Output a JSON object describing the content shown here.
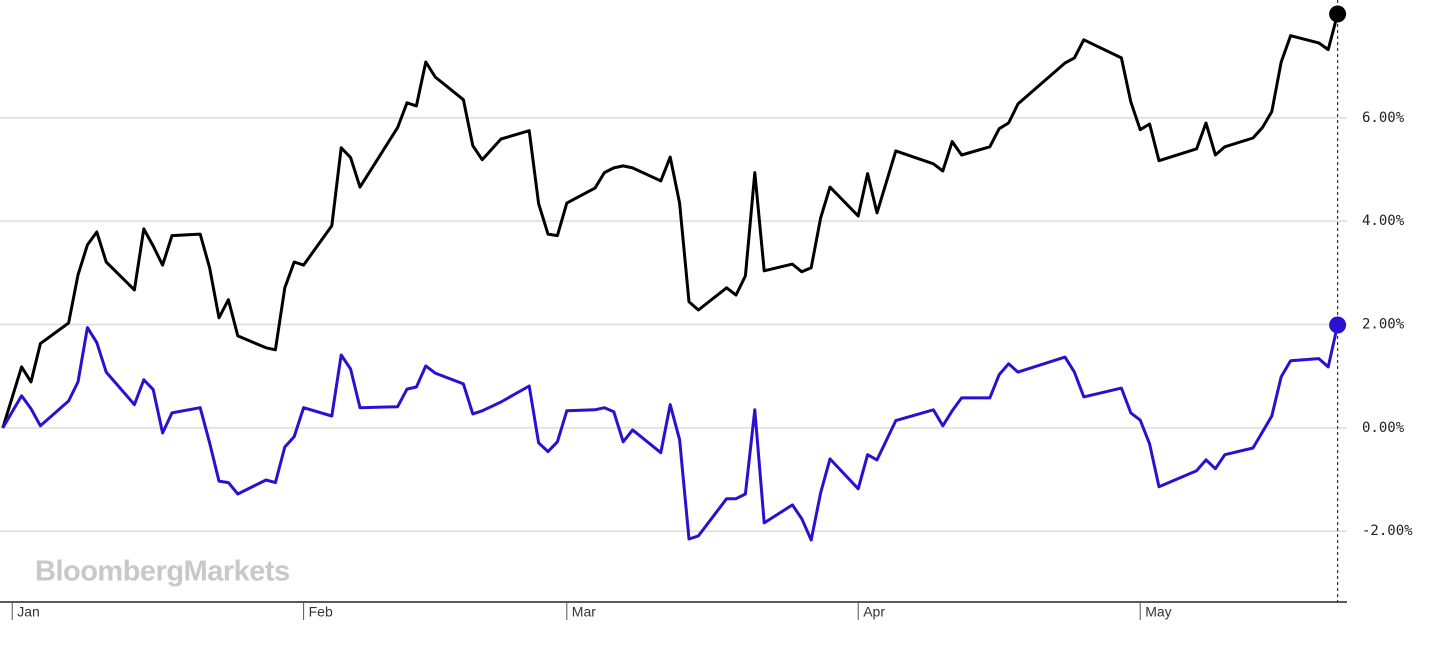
{
  "chart_data": {
    "type": "line",
    "watermark": "BloombergMarkets",
    "x": [
      -1,
      1,
      2,
      3,
      6,
      7,
      8,
      9,
      10,
      13,
      14,
      15,
      16,
      17,
      20,
      21,
      22,
      23,
      24,
      27,
      28,
      29,
      30,
      31,
      34,
      35,
      36,
      37,
      41,
      42,
      43,
      44,
      45,
      48,
      49,
      50,
      52,
      55,
      56,
      57,
      58,
      59,
      62,
      63,
      64,
      65,
      66,
      69,
      70,
      71,
      72,
      73,
      76,
      77,
      78,
      79,
      80,
      83,
      84,
      85,
      86,
      87,
      90,
      91,
      92,
      94,
      98,
      99,
      100,
      101,
      104,
      105,
      106,
      107,
      112,
      113,
      114,
      118,
      119,
      120,
      121,
      122,
      126,
      127,
      128,
      129,
      132,
      133,
      134,
      135,
      136,
      139,
      140,
      141
    ],
    "series": [
      {
        "color": "#000000",
        "values": [
          0,
          1.18,
          0.89,
          1.63,
          2.03,
          2.96,
          3.54,
          3.79,
          3.21,
          2.67,
          3.85,
          3.52,
          3.15,
          3.72,
          3.75,
          3.1,
          2.13,
          2.48,
          1.78,
          1.55,
          1.51,
          2.71,
          3.21,
          3.15,
          3.91,
          5.42,
          5.23,
          4.66,
          5.81,
          6.29,
          6.23,
          7.08,
          6.79,
          6.35,
          5.46,
          5.19,
          5.59,
          5.75,
          4.34,
          3.75,
          3.72,
          4.35,
          4.64,
          4.94,
          5.03,
          5.07,
          5.03,
          4.78,
          5.24,
          4.35,
          2.44,
          2.28,
          2.71,
          2.57,
          2.94,
          4.94,
          3.04,
          3.17,
          3.02,
          3.1,
          4.06,
          4.66,
          4.1,
          4.92,
          4.16,
          5.36,
          5.11,
          4.97,
          5.54,
          5.28,
          5.44,
          5.79,
          5.9,
          6.27,
          7.06,
          7.16,
          7.51,
          7.16,
          6.31,
          5.77,
          5.88,
          5.17,
          5.4,
          5.9,
          5.28,
          5.44,
          5.61,
          5.81,
          6.12,
          7.08,
          7.59,
          7.45,
          7.32,
          8.01
        ]
      },
      {
        "color": "#2a10d0",
        "values": [
          0,
          0.62,
          0.37,
          0.04,
          0.52,
          0.89,
          1.94,
          1.65,
          1.08,
          0.45,
          0.93,
          0.74,
          -0.1,
          0.29,
          0.39,
          -0.29,
          -1.03,
          -1.06,
          -1.28,
          -1.01,
          -1.06,
          -0.37,
          -0.17,
          0.39,
          0.23,
          1.41,
          1.14,
          0.39,
          0.41,
          0.75,
          0.79,
          1.2,
          1.06,
          0.85,
          0.27,
          0.33,
          0.5,
          0.81,
          -0.29,
          -0.46,
          -0.27,
          0.33,
          0.35,
          0.39,
          0.31,
          -0.27,
          -0.04,
          -0.48,
          0.45,
          -0.23,
          -2.15,
          -2.09,
          -1.37,
          -1.37,
          -1.28,
          0.35,
          -1.84,
          -1.49,
          -1.76,
          -2.17,
          -1.26,
          -0.6,
          -1.18,
          -0.52,
          -0.62,
          0.14,
          0.35,
          0.04,
          0.33,
          0.58,
          0.58,
          1.03,
          1.24,
          1.08,
          1.37,
          1.08,
          0.6,
          0.77,
          0.29,
          0.15,
          -0.31,
          -1.14,
          -0.83,
          -0.62,
          -0.79,
          -0.52,
          -0.39,
          -0.08,
          0.23,
          0.99,
          1.3,
          1.34,
          1.18,
          1.99
        ]
      }
    ],
    "xlim": [
      -1.3,
      142
    ],
    "xticks": [
      {
        "value": 0,
        "label": "Jan"
      },
      {
        "value": 31,
        "label": "Feb"
      },
      {
        "value": 59,
        "label": "Mar"
      },
      {
        "value": 90,
        "label": "Apr"
      },
      {
        "value": 120,
        "label": "May"
      }
    ],
    "ylim": [
      -3.37,
      8.28
    ],
    "yticks": [
      {
        "value": -2,
        "label": "-2.00%"
      },
      {
        "value": 0,
        "label": "0.00%"
      },
      {
        "value": 2,
        "label": "2.00%"
      },
      {
        "value": 4,
        "label": "4.00%"
      },
      {
        "value": 6,
        "label": "6.00%"
      }
    ],
    "grid": true
  }
}
